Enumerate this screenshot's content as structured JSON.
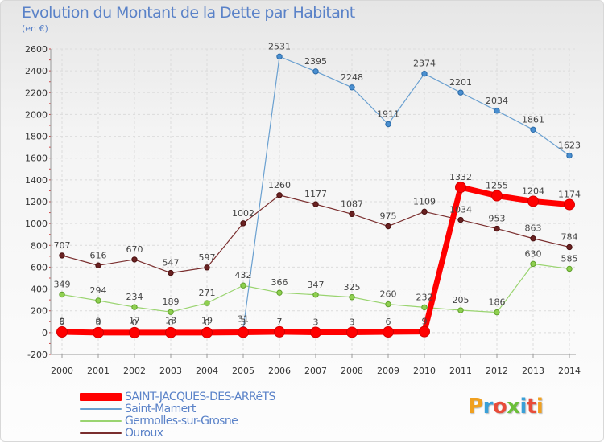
{
  "title": "Evolution du Montant de la Dette par Habitant",
  "unit": "(en €)",
  "logo": {
    "text": "Proxiti",
    "letters": [
      "P",
      "r",
      "o",
      "x",
      "i",
      "t",
      "i"
    ],
    "colors": [
      "#f0a020",
      "#3aa0d8",
      "#e84c3a",
      "#6cbf3a",
      "#3aa0d8",
      "#e84c3a",
      "#f0a020"
    ]
  },
  "chart_data": {
    "type": "line",
    "title": "Evolution du Montant de la Dette par Habitant",
    "xlabel": "",
    "ylabel": "(en €)",
    "x": [
      2000,
      2001,
      2002,
      2003,
      2004,
      2005,
      2006,
      2007,
      2008,
      2009,
      2010,
      2011,
      2012,
      2013,
      2014
    ],
    "ylim": [
      -200,
      2600
    ],
    "yticks": [
      -200,
      0,
      200,
      400,
      600,
      800,
      1000,
      1200,
      1400,
      1600,
      1800,
      2000,
      2200,
      2400,
      2600
    ],
    "grid": true,
    "legend_position": "bottom-left",
    "series": [
      {
        "name": "SAINT-JACQUES-DES-ARRêTS",
        "color": "#ff0000",
        "values": [
          6,
          0,
          0,
          0,
          0,
          3,
          7,
          3,
          3,
          6,
          9,
          1332,
          1255,
          1204,
          1174
        ],
        "labels": [
          "6",
          "0",
          "0",
          "0",
          "0",
          "3",
          "7",
          "3",
          "3",
          "6",
          "9",
          "1332",
          "1255",
          "1204",
          "1174"
        ]
      },
      {
        "name": "Saint-Mamert",
        "color": "#6aa0d0",
        "values": [
          9,
          9,
          17,
          18,
          19,
          31,
          2531,
          2395,
          2248,
          1911,
          2374,
          2201,
          2034,
          1861,
          1623
        ],
        "labels": [
          "9",
          "9",
          "17",
          "18",
          "19",
          "31",
          "2531",
          "2395",
          "2248",
          "1911",
          "2374",
          "2201",
          "2034",
          "1861",
          "1623"
        ]
      },
      {
        "name": "Germolles-sur-Grosne",
        "color": "#9ad470",
        "values": [
          349,
          294,
          234,
          189,
          271,
          432,
          366,
          347,
          325,
          260,
          232,
          205,
          186,
          630,
          585
        ],
        "labels": [
          "349",
          "294",
          "234",
          "189",
          "271",
          "432",
          "366",
          "347",
          "325",
          "260",
          "232",
          "205",
          "186",
          "630",
          "585"
        ]
      },
      {
        "name": "Ouroux",
        "color": "#7a2e2e",
        "values": [
          707,
          616,
          670,
          547,
          597,
          1002,
          1260,
          1177,
          1087,
          975,
          1109,
          1034,
          953,
          863,
          784
        ],
        "labels": [
          "707",
          "616",
          "670",
          "547",
          "597",
          "1002",
          "1260",
          "1177",
          "1087",
          "975",
          "1109",
          "1034",
          "953",
          "863",
          "784"
        ]
      }
    ]
  }
}
